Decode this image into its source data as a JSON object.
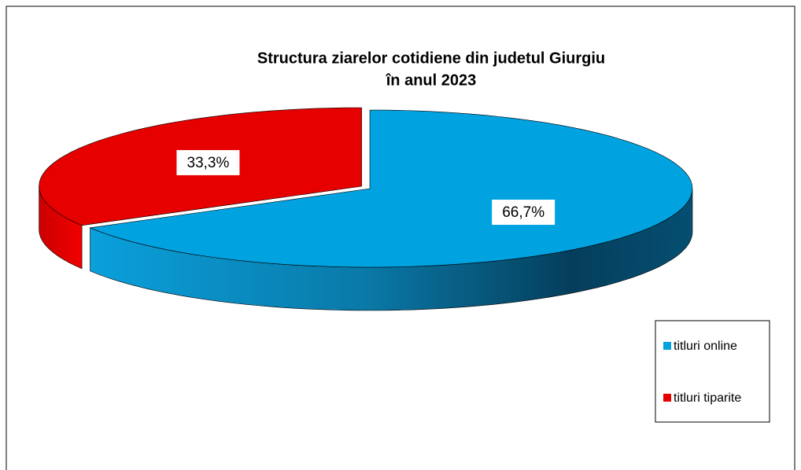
{
  "chart_data": {
    "type": "pie",
    "title": [
      "Structura ziarelor cotidiene  din judetul Giurgiu",
      "în anul 2023"
    ],
    "categories": [
      "titluri online",
      "titluri tiparite"
    ],
    "values": [
      66.7,
      33.3
    ],
    "value_labels": [
      "66,7%",
      "33,3%"
    ],
    "colors": [
      "#00a2e0",
      "#e60000"
    ],
    "legend": "right"
  }
}
